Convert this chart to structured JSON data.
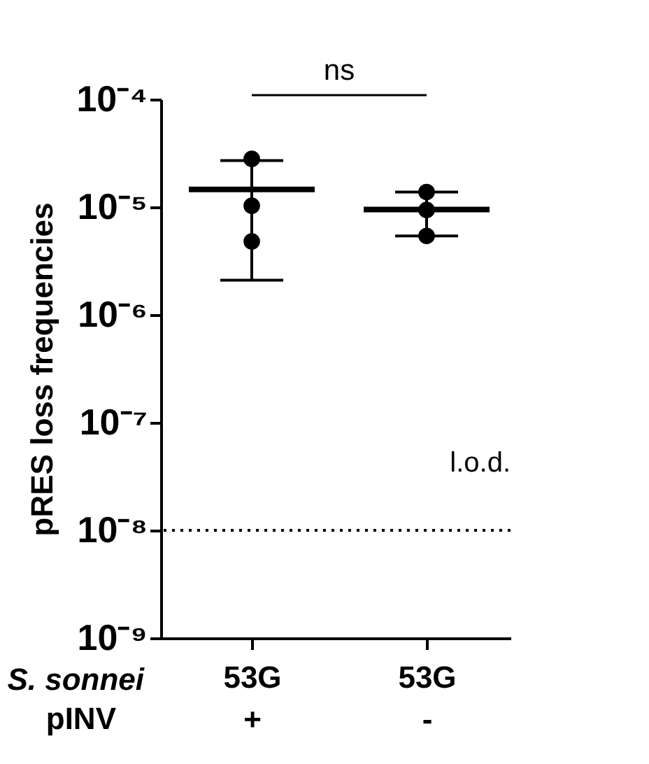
{
  "chart_data": {
    "type": "box",
    "ylabel": "pRES loss frequencies",
    "categories": [
      "53G\n+",
      "53G\n-"
    ],
    "log": "y",
    "ylim": [
      1e-09,
      0.0001
    ],
    "yticks": [
      {
        "value": 1e-09,
        "label": "10⁻⁹"
      },
      {
        "value": 1e-08,
        "label": "10⁻⁸"
      },
      {
        "value": 1e-07,
        "label": "10⁻⁷"
      },
      {
        "value": 1e-06,
        "label": "10⁻⁶"
      },
      {
        "value": 1e-05,
        "label": "10⁻⁵"
      },
      {
        "value": 0.0001,
        "label": "10⁻⁴"
      }
    ],
    "grid": false,
    "legend": false,
    "boxes": [
      {
        "low": 2.1e-06,
        "q1": 1.46e-05,
        "median": 1.46e-05,
        "q3": 1.46e-05,
        "high": 2.7e-05
      },
      {
        "low": 5.4e-06,
        "q1": 9.5e-06,
        "median": 9.5e-06,
        "q3": 9.5e-06,
        "high": 1.38e-05
      }
    ],
    "series": [
      {
        "type": "scatter",
        "color": "#000000",
        "marker": "circle",
        "x": [
          "53G\n+",
          "53G\n-"
        ],
        "values": [
          2.8e-05,
          1.38e-05
        ]
      },
      {
        "type": "scatter",
        "color": "#000000",
        "marker": "circle",
        "x": [
          "53G\n+",
          "53G\n-"
        ],
        "values": [
          1.03e-05,
          9.4e-06
        ]
      },
      {
        "type": "scatter",
        "color": "#000000",
        "marker": "circle",
        "x": [
          "53G\n+",
          "53G\n-"
        ],
        "values": [
          4.8e-06,
          5.4e-06
        ]
      }
    ],
    "ref_lines": [
      {
        "axis": "y",
        "value": 1e-08,
        "label": "l.o.d.",
        "line_style": "dotted",
        "color": "#000000"
      }
    ],
    "annotations": [
      "ns",
      "S. sonnei",
      "pINV"
    ]
  }
}
